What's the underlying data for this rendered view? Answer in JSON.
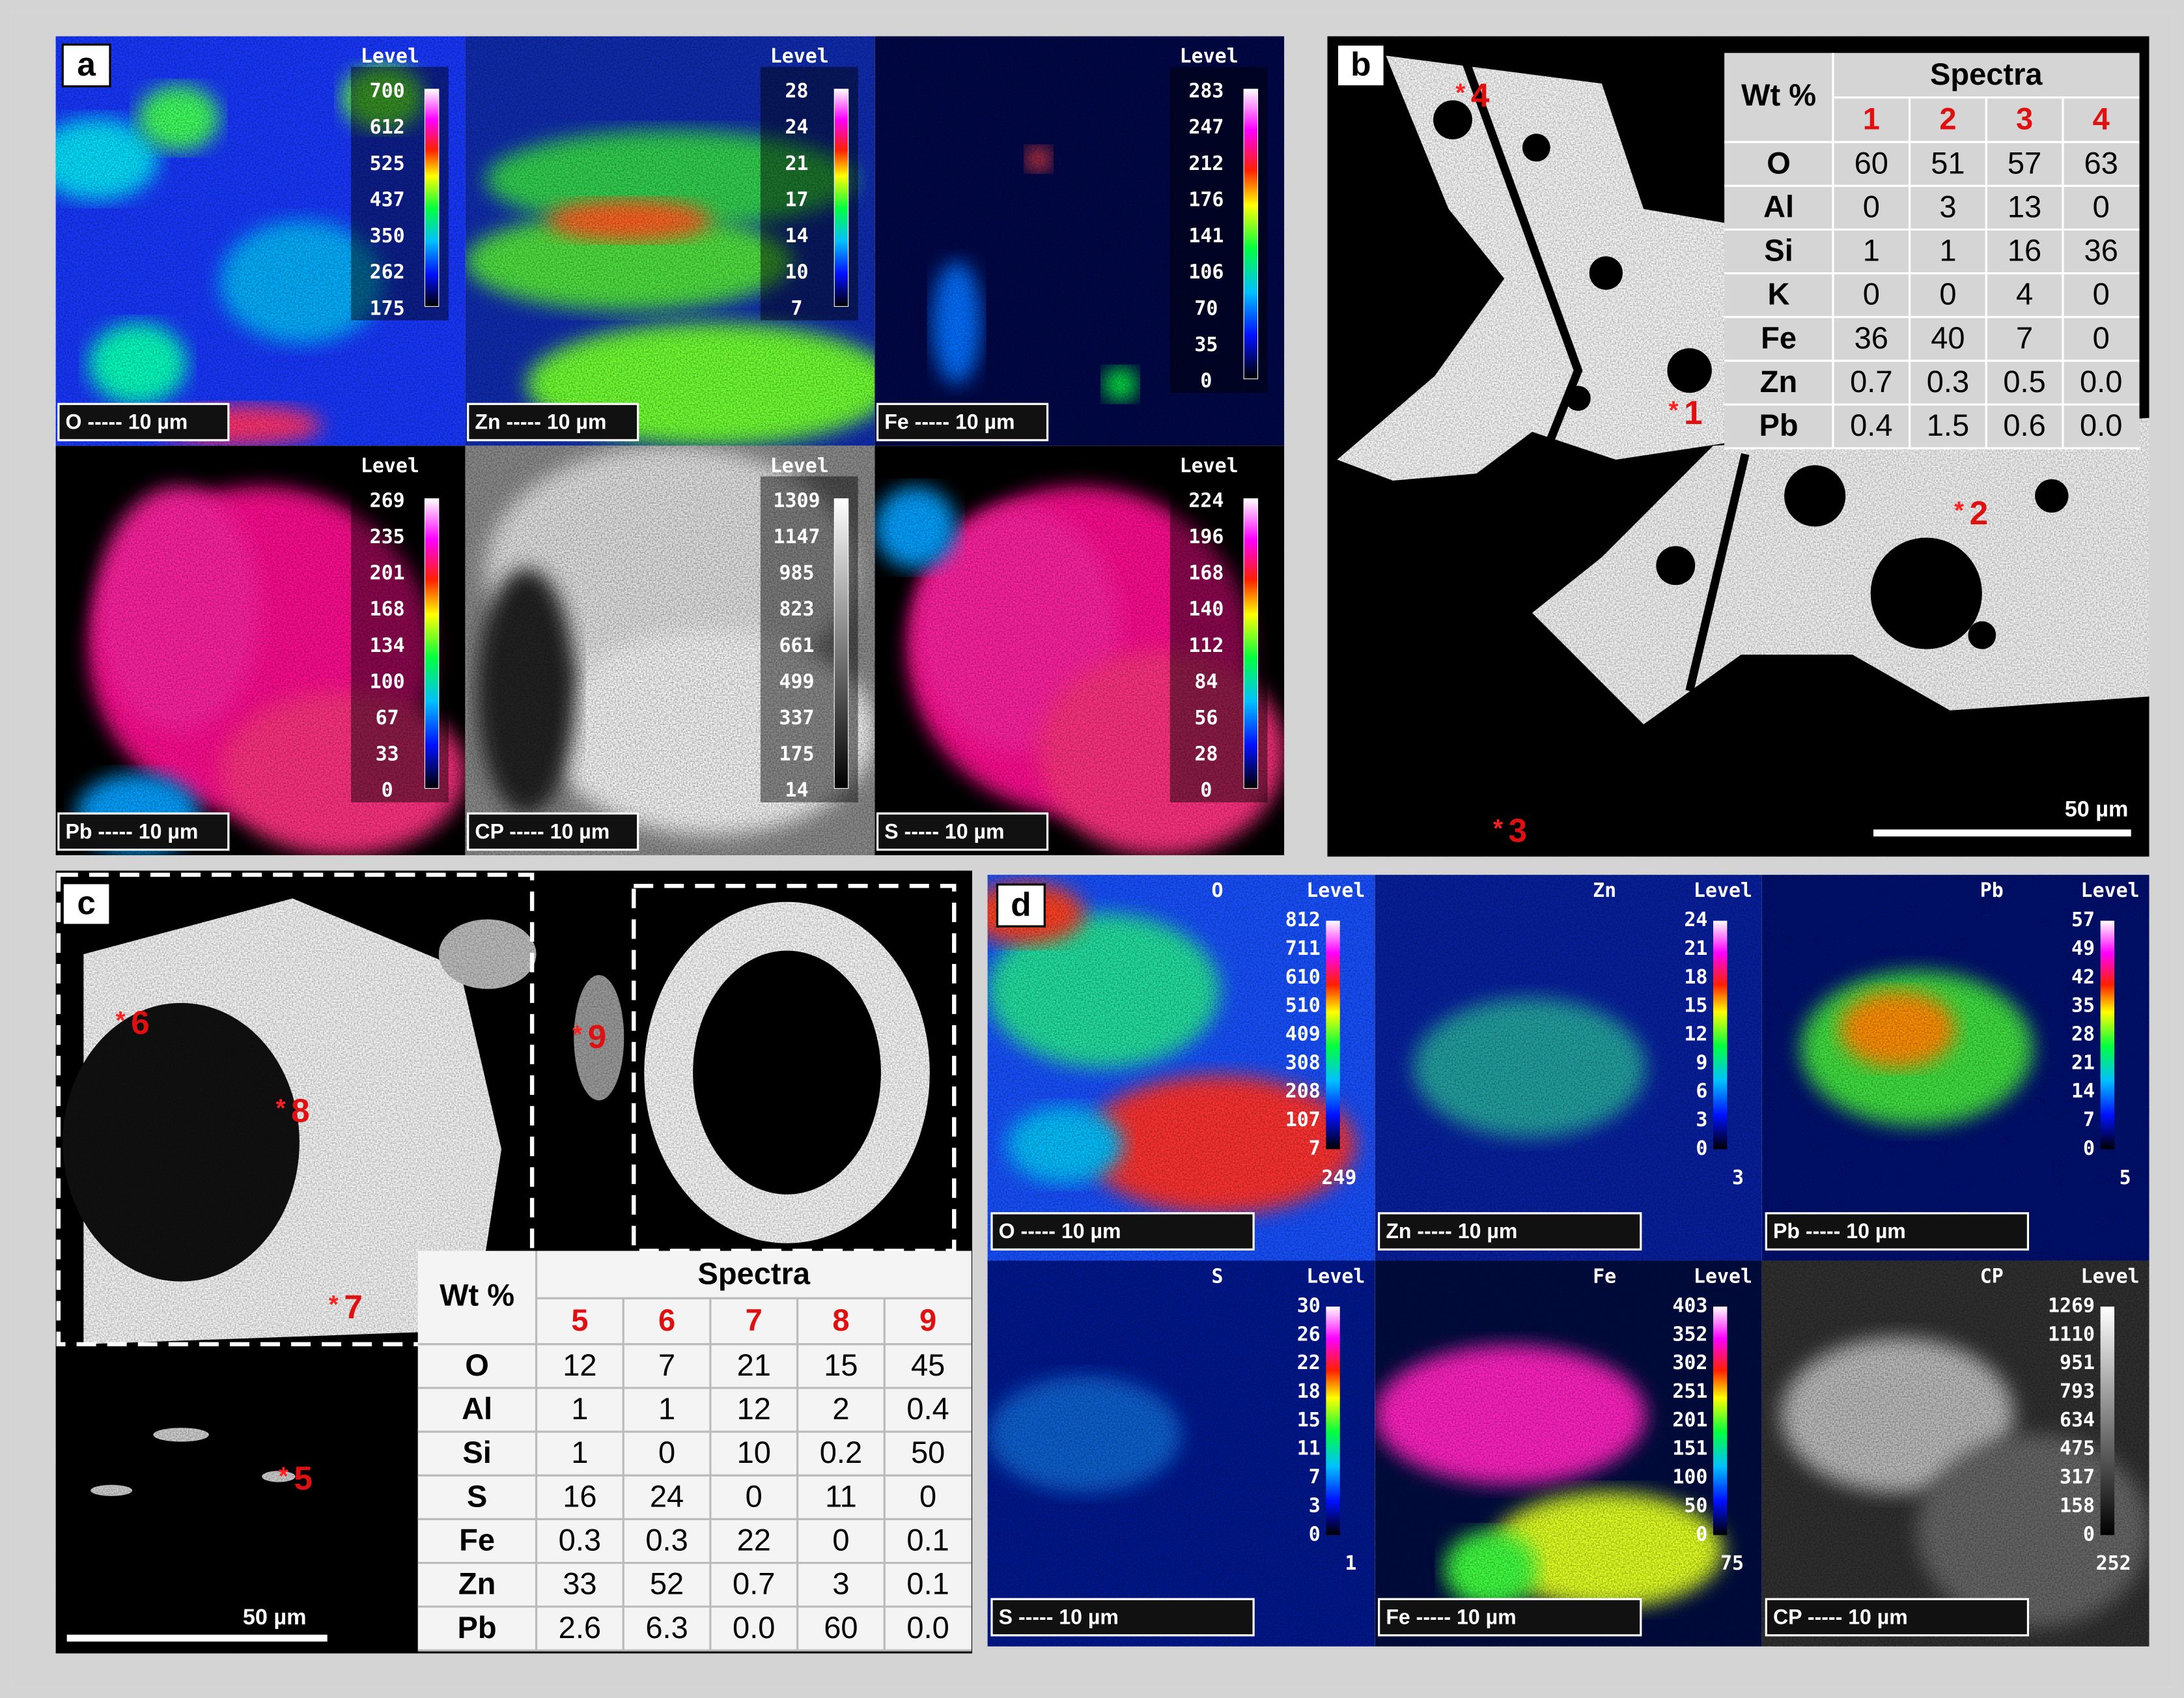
{
  "marker_symbol": "*",
  "panel_a": {
    "label": "a",
    "maps": [
      {
        "caption": "O ----- 10 µm",
        "level_title": "Level",
        "levels": [
          "700",
          "612",
          "525",
          "437",
          "350",
          "262",
          "175"
        ]
      },
      {
        "caption": "Zn ----- 10 µm",
        "level_title": "Level",
        "levels": [
          "28",
          "24",
          "21",
          "17",
          "14",
          "10",
          "7"
        ]
      },
      {
        "caption": "Fe ----- 10 µm",
        "level_title": "Level",
        "levels": [
          "283",
          "247",
          "212",
          "176",
          "141",
          "106",
          "70",
          "35",
          "0"
        ]
      },
      {
        "caption": "Pb ----- 10 µm",
        "level_title": "Level",
        "levels": [
          "269",
          "235",
          "201",
          "168",
          "134",
          "100",
          "67",
          "33",
          "0"
        ]
      },
      {
        "caption": "CP ----- 10 µm",
        "level_title": "Level",
        "levels": [
          "1309",
          "1147",
          "985",
          "823",
          "661",
          "499",
          "337",
          "175",
          "14"
        ]
      },
      {
        "caption": "S ----- 10 µm",
        "level_title": "Level",
        "levels": [
          "224",
          "196",
          "168",
          "140",
          "112",
          "84",
          "56",
          "28",
          "0"
        ]
      }
    ]
  },
  "panel_b": {
    "label": "b",
    "markers": [
      "4",
      "1",
      "2",
      "3"
    ],
    "scale_bar": "50 µm",
    "table": {
      "header": "Wt %",
      "group": "Spectra",
      "columns": [
        "1",
        "2",
        "3",
        "4"
      ],
      "rows": [
        [
          "O",
          "60",
          "51",
          "57",
          "63"
        ],
        [
          "Al",
          "0",
          "3",
          "13",
          "0"
        ],
        [
          "Si",
          "1",
          "1",
          "16",
          "36"
        ],
        [
          "K",
          "0",
          "0",
          "4",
          "0"
        ],
        [
          "Fe",
          "36",
          "40",
          "7",
          "0"
        ],
        [
          "Zn",
          "0.7",
          "0.3",
          "0.5",
          "0.0"
        ],
        [
          "Pb",
          "0.4",
          "1.5",
          "0.6",
          "0.0"
        ]
      ]
    }
  },
  "panel_c": {
    "label": "c",
    "markers": [
      "6",
      "9",
      "8",
      "7",
      "5"
    ],
    "scale_bar": "50 µm",
    "table": {
      "header": "Wt %",
      "group": "Spectra",
      "columns": [
        "5",
        "6",
        "7",
        "8",
        "9"
      ],
      "rows": [
        [
          "O",
          "12",
          "7",
          "21",
          "15",
          "45"
        ],
        [
          "Al",
          "1",
          "1",
          "12",
          "2",
          "0.4"
        ],
        [
          "Si",
          "1",
          "0",
          "10",
          "0.2",
          "50"
        ],
        [
          "S",
          "16",
          "24",
          "0",
          "11",
          "0"
        ],
        [
          "Fe",
          "0.3",
          "0.3",
          "22",
          "0",
          "0.1"
        ],
        [
          "Zn",
          "33",
          "52",
          "0.7",
          "3",
          "0.1"
        ],
        [
          "Pb",
          "2.6",
          "6.3",
          "0.0",
          "60",
          "0.0"
        ]
      ]
    }
  },
  "panel_d": {
    "label": "d",
    "maps": [
      {
        "element": "O",
        "caption": "O ----- 10 µm",
        "level_title": "Level",
        "levels": [
          "812",
          "711",
          "610",
          "510",
          "409",
          "308",
          "208",
          "107",
          "7"
        ],
        "min_value": "249"
      },
      {
        "element": "Zn",
        "caption": "Zn ----- 10 µm",
        "level_title": "Level",
        "levels": [
          "24",
          "21",
          "18",
          "15",
          "12",
          "9",
          "6",
          "3",
          "0"
        ],
        "min_value": "3"
      },
      {
        "element": "Pb",
        "caption": "Pb ----- 10 µm",
        "level_title": "Level",
        "levels": [
          "57",
          "49",
          "42",
          "35",
          "28",
          "21",
          "14",
          "7",
          "0"
        ],
        "min_value": "5"
      },
      {
        "element": "S",
        "caption": "S ----- 10 µm",
        "level_title": "Level",
        "levels": [
          "30",
          "26",
          "22",
          "18",
          "15",
          "11",
          "7",
          "3",
          "0"
        ],
        "min_value": "1"
      },
      {
        "element": "Fe",
        "caption": "Fe ----- 10 µm",
        "level_title": "Level",
        "levels": [
          "403",
          "352",
          "302",
          "251",
          "201",
          "151",
          "100",
          "50",
          "0"
        ],
        "min_value": "75"
      },
      {
        "element": "CP",
        "caption": "CP ----- 10 µm",
        "level_title": "Level",
        "levels": [
          "1269",
          "1110",
          "951",
          "793",
          "634",
          "475",
          "317",
          "158",
          "0"
        ],
        "min_value": "252"
      }
    ]
  }
}
